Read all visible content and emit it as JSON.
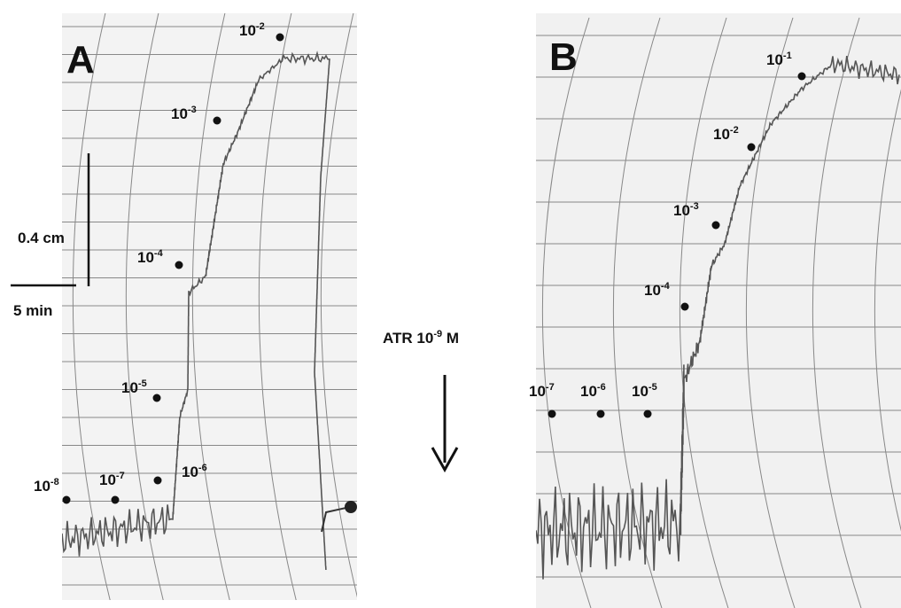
{
  "panels": [
    {
      "label": "A",
      "concentrations": [
        {
          "base": "10",
          "exp": "-2"
        },
        {
          "base": "10",
          "exp": "-3"
        },
        {
          "base": "10",
          "exp": "-4"
        },
        {
          "base": "10",
          "exp": "-5"
        },
        {
          "base": "10",
          "exp": "-6"
        },
        {
          "base": "10",
          "exp": "-7"
        },
        {
          "base": "10",
          "exp": "-8"
        }
      ]
    },
    {
      "label": "B",
      "concentrations": [
        {
          "base": "10",
          "exp": "-1"
        },
        {
          "base": "10",
          "exp": "-2"
        },
        {
          "base": "10",
          "exp": "-3"
        },
        {
          "base": "10",
          "exp": "-4"
        },
        {
          "base": "10",
          "exp": "-5"
        },
        {
          "base": "10",
          "exp": "-6"
        },
        {
          "base": "10",
          "exp": "-7"
        }
      ]
    }
  ],
  "scale_bar": {
    "vertical": "0.4 cm",
    "horizontal": "5 min"
  },
  "treatment": {
    "prefix": "ATR 10",
    "exp": "-9",
    "suffix": " M"
  }
}
